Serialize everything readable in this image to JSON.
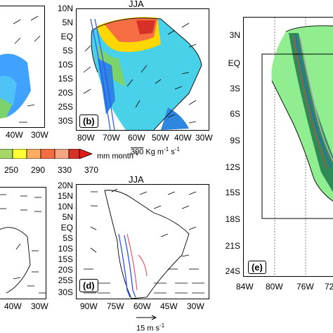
{
  "panel_a": {
    "xticks": [
      "40W",
      "30W"
    ]
  },
  "panel_b": {
    "title": "JJA",
    "label": "(b)",
    "yticks": [
      "10N",
      "5N",
      "EQ",
      "5S",
      "10S",
      "15S",
      "20S",
      "25S",
      "30S"
    ],
    "xticks": [
      "80W",
      "70W",
      "60W",
      "50W",
      "40W",
      "30W"
    ]
  },
  "colorbar": {
    "units": "mm month",
    "units_sup": "-1",
    "vector_ref": "300",
    "vector_units": "Kg m",
    "vector_units_sup": "-1",
    "vector_units_s": "s",
    "vector_units_s_sup": "-1",
    "labels": [
      "250",
      "290",
      "330",
      "370"
    ],
    "colors": [
      "#a6d96a",
      "#ffff33",
      "#fdae61",
      "#f46d43",
      "#d73027",
      "#f4a582",
      "#e31a1c"
    ]
  },
  "panel_c": {
    "xticks": [
      "40W",
      "30W"
    ]
  },
  "panel_d": {
    "title": "JJA",
    "label": "(d)",
    "yticks": [
      "20N",
      "15N",
      "10N",
      "5N",
      "EQ",
      "5S",
      "10S",
      "15S",
      "20S",
      "25S",
      "30S"
    ],
    "xticks": [
      "90W",
      "75W",
      "60W",
      "45W",
      "30W"
    ],
    "vector_ref": "15",
    "vector_units": "m s",
    "vector_units_sup": "-1"
  },
  "panel_e": {
    "label": "(e)",
    "yticks": [
      "3N",
      "EQ",
      "3S",
      "6S",
      "9S",
      "12S",
      "15S",
      "18S",
      "21S",
      "24S"
    ],
    "xticks": [
      "84W",
      "80W",
      "76W",
      "72"
    ]
  }
}
